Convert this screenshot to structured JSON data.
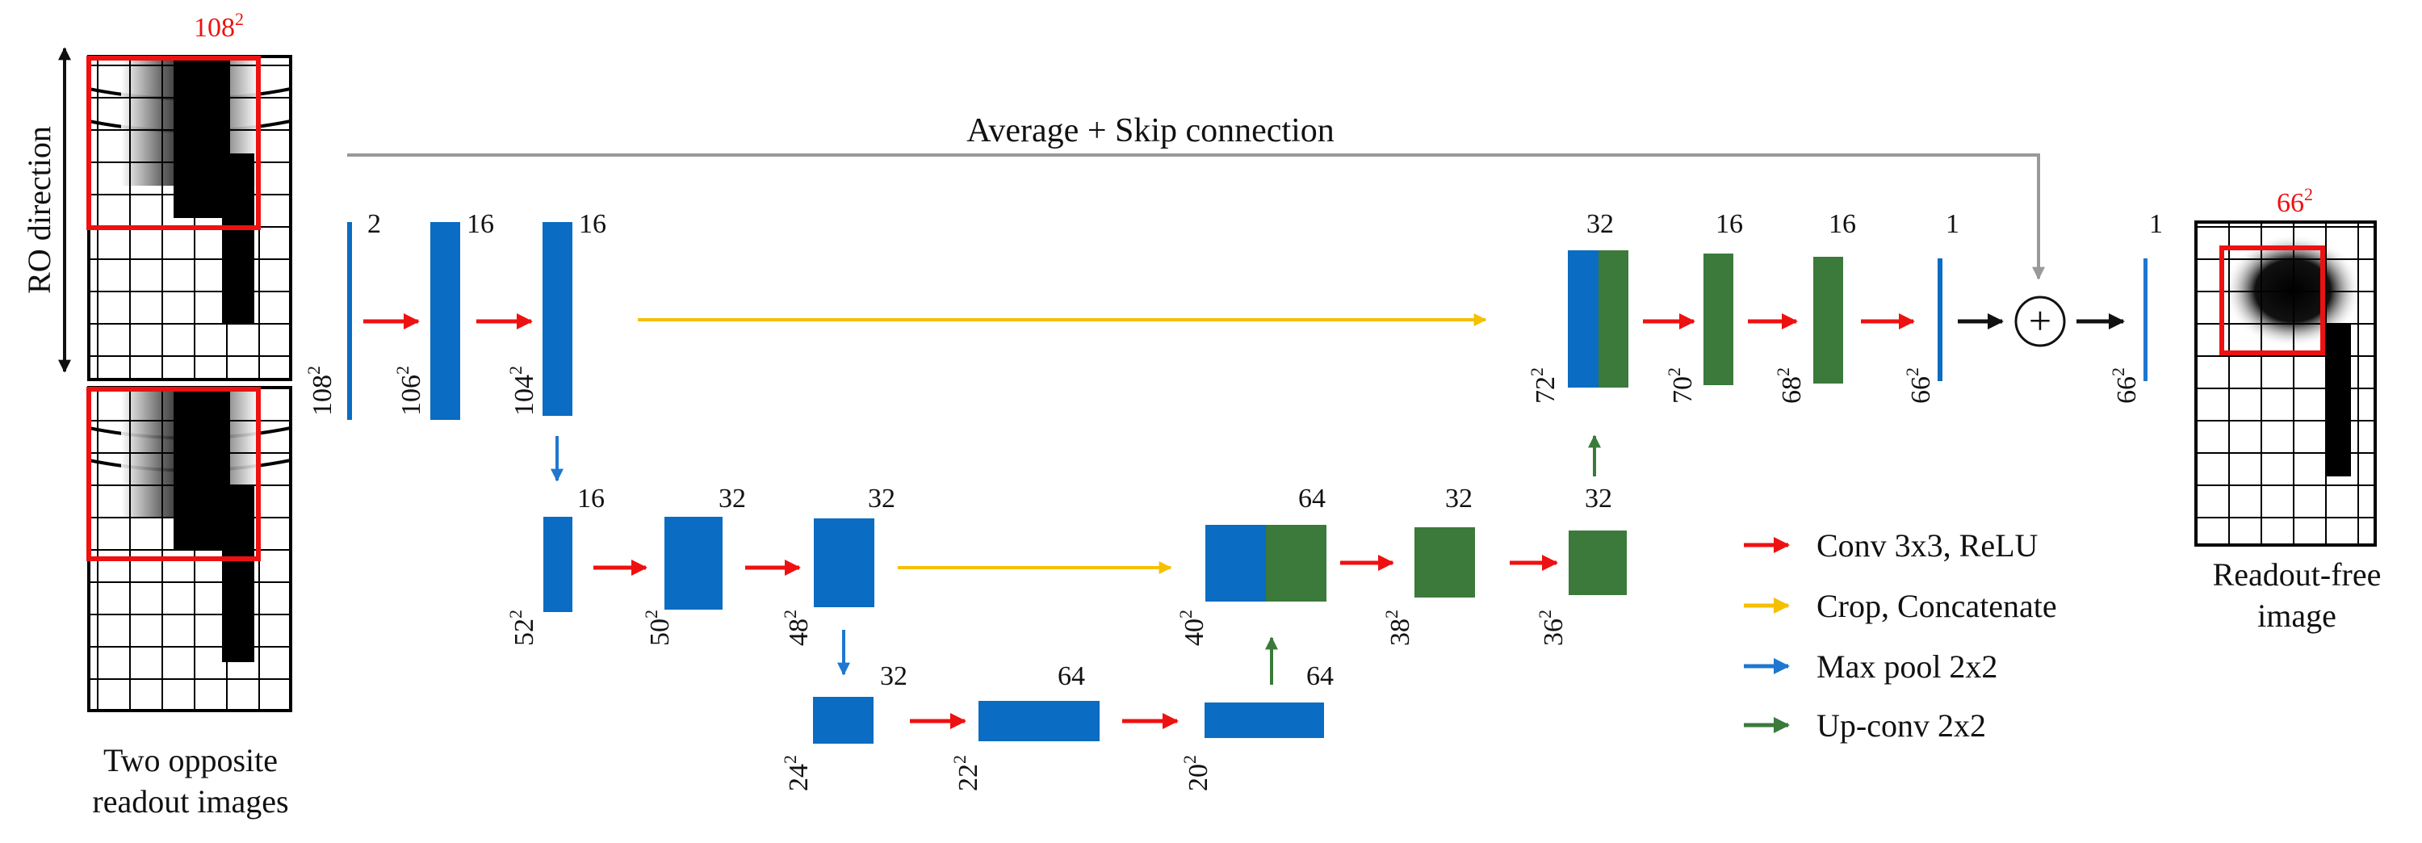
{
  "colors": {
    "blue": "#0a6cc2",
    "green": "#3b7a3b",
    "conv": "#ee1111",
    "crop": "#f5c000",
    "pool": "#1f77d0",
    "upconv": "#3b7a3b",
    "skip": "#999999",
    "crop_box": "#ee1111"
  },
  "left": {
    "top_size": "108",
    "ro_label": "RO direction",
    "caption_line1": "Two opposite",
    "caption_line2": "readout images"
  },
  "skip_label": "Average + Skip connection",
  "plus_symbol": "+",
  "right": {
    "top_size": "66",
    "caption_line1": "Readout-free",
    "caption_line2": "image"
  },
  "level1": {
    "input": {
      "channels": "2",
      "size": "108"
    },
    "conv1": {
      "channels": "16",
      "size": "106"
    },
    "conv2": {
      "channels": "16",
      "size": "104"
    }
  },
  "level2": {
    "pool": {
      "channels": "16",
      "size": "52"
    },
    "conv1": {
      "channels": "32",
      "size": "50"
    },
    "conv2": {
      "channels": "32",
      "size": "48"
    }
  },
  "level3": {
    "pool": {
      "channels": "32",
      "size": "24"
    },
    "conv1": {
      "channels": "64",
      "size": "22"
    },
    "conv2": {
      "channels": "64",
      "size": "20"
    }
  },
  "up2": {
    "concat": {
      "channels": "64",
      "size": "40"
    },
    "conv1": {
      "channels": "32",
      "size": "38"
    },
    "conv2": {
      "channels": "32",
      "size": "36"
    }
  },
  "up1": {
    "concat": {
      "channels": "32",
      "size": "72"
    },
    "conv1": {
      "channels": "16",
      "size": "70"
    },
    "conv2": {
      "channels": "16",
      "size": "68"
    },
    "out": {
      "channels": "1",
      "size": "66"
    }
  },
  "final": {
    "channels": "1",
    "size": "66"
  },
  "legend": [
    {
      "label": "Conv 3x3, ReLU",
      "color_key": "conv"
    },
    {
      "label": "Crop, Concatenate",
      "color_key": "crop"
    },
    {
      "label": "Max pool 2x2",
      "color_key": "pool"
    },
    {
      "label": "Up-conv 2x2",
      "color_key": "upconv"
    }
  ],
  "superscript": "2"
}
